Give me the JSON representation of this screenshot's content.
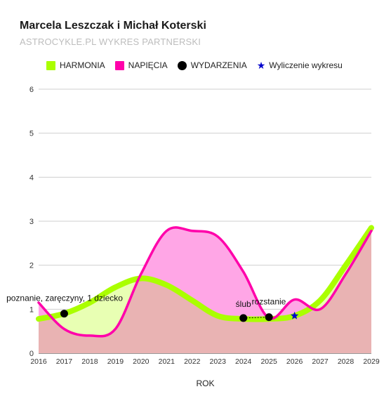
{
  "header": {
    "title": "Marcela Leszczak i Michał Koterski",
    "subtitle": "ASTROCYKLE.PL WYKRES PARTNERSKI"
  },
  "legend": {
    "items": [
      {
        "label": "HARMONIA",
        "icon": "square",
        "color": "#aaff00"
      },
      {
        "label": "NAPIĘCIA",
        "icon": "square",
        "color": "#ff00aa"
      },
      {
        "label": "WYDARZENIA",
        "icon": "dot",
        "color": "#000000"
      },
      {
        "label": "Wyliczenie wykresu",
        "icon": "star",
        "color": "#0000cc"
      }
    ]
  },
  "chart_data": {
    "type": "area",
    "title": "Marcela Leszczak i Michał Koterski",
    "subtitle": "ASTROCYKLE.PL WYKRES PARTNERSKI",
    "xlabel": "ROK",
    "ylabel": "",
    "xlim": [
      2016,
      2029
    ],
    "ylim": [
      0,
      6
    ],
    "x_ticks": [
      2016,
      2017,
      2018,
      2019,
      2020,
      2021,
      2022,
      2023,
      2024,
      2025,
      2026,
      2027,
      2028,
      2029
    ],
    "y_ticks": [
      0,
      1,
      2,
      3,
      4,
      5,
      6
    ],
    "grid": true,
    "legend_position": "top",
    "colors": {
      "harmony_line": "#aaff00",
      "harmony_fill": "#e8ffb3",
      "tension_line": "#ff00aa",
      "tension_fill": "#ffa6e6",
      "overlap_fill": "#e9b3b3",
      "events": "#000000",
      "calculation_marker": "#0000cc"
    },
    "series": [
      {
        "name": "HARMONIA",
        "x": [
          2016,
          2017,
          2018,
          2019,
          2020,
          2021,
          2022,
          2023,
          2024,
          2025,
          2026,
          2027,
          2028,
          2029
        ],
        "values": [
          0.78,
          0.9,
          1.15,
          1.5,
          1.7,
          1.55,
          1.2,
          0.85,
          0.78,
          0.78,
          0.85,
          1.2,
          2.0,
          2.85
        ]
      },
      {
        "name": "NAPIĘCIA",
        "x": [
          2016,
          2017,
          2018,
          2019,
          2020,
          2021,
          2022,
          2023,
          2024,
          2025,
          2026,
          2027,
          2028,
          2029
        ],
        "values": [
          1.15,
          0.55,
          0.4,
          0.55,
          1.8,
          2.78,
          2.78,
          2.65,
          1.85,
          0.8,
          1.22,
          1.0,
          1.8,
          2.78
        ]
      }
    ],
    "events": [
      {
        "x": 2017,
        "y": 0.9,
        "label": "poznanie, zaręczyny, 1 dziecko"
      },
      {
        "x": 2024,
        "y": 0.8,
        "label": "ślub"
      },
      {
        "x": 2025,
        "y": 0.82,
        "label": "rozstanie"
      }
    ],
    "calculation_marker": {
      "x": 2026,
      "y": 0.85
    }
  }
}
